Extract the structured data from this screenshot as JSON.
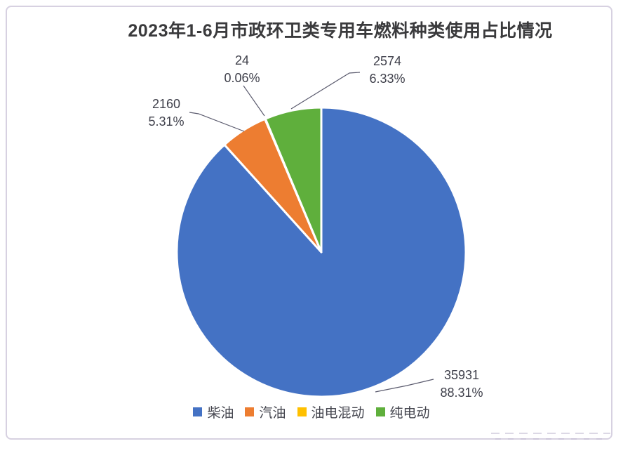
{
  "page": {
    "background_color": "#ffffff",
    "frame_border_color": "#d7d1e1"
  },
  "chart_data": {
    "type": "pie",
    "title": "2023年1-6月市政环卫类专用车燃料种类使用占比情况",
    "legend_position": "bottom",
    "start_angle_deg": 0,
    "direction": "clockwise",
    "categories": [
      "柴油",
      "汽油",
      "油电混动",
      "纯电动"
    ],
    "values": [
      35931,
      2160,
      24,
      2574
    ],
    "percents": [
      "88.31%",
      "5.31%",
      "0.06%",
      "6.33%"
    ],
    "slices": [
      {
        "label": "柴油",
        "value": 35931,
        "value_label": "35931",
        "percent_label": "88.31%",
        "color": "#4472C4"
      },
      {
        "label": "汽油",
        "value": 2160,
        "value_label": "2160",
        "percent_label": "5.31%",
        "color": "#ED7D31"
      },
      {
        "label": "油电混动",
        "value": 24,
        "value_label": "24",
        "percent_label": "0.06%",
        "color": "#FFC000"
      },
      {
        "label": "纯电动",
        "value": 2574,
        "value_label": "2574",
        "percent_label": "6.33%",
        "color": "#5FAF3C"
      }
    ]
  }
}
